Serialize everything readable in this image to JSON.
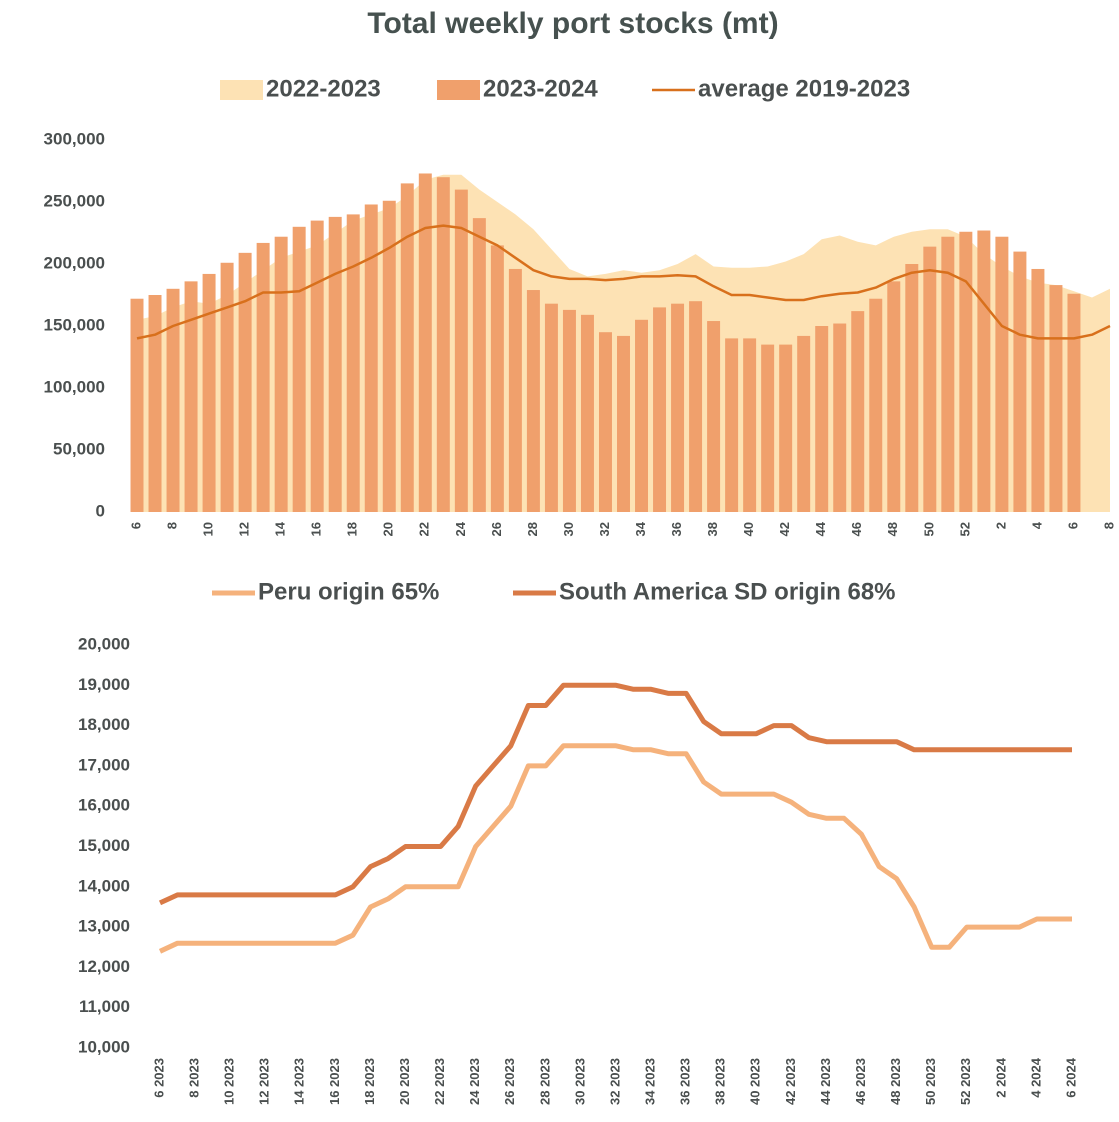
{
  "chart_data": [
    {
      "type": "bar",
      "title": "Total weekly port stocks (mt)",
      "categories": [
        "6",
        null,
        "8",
        null,
        "10",
        null,
        "12",
        null,
        "14",
        null,
        "16",
        null,
        "18",
        null,
        "20",
        null,
        "22",
        null,
        "24",
        null,
        "26",
        null,
        "28",
        null,
        "30",
        null,
        "32",
        null,
        "34",
        null,
        "36",
        null,
        "38",
        null,
        "40",
        null,
        "42",
        null,
        "44",
        null,
        "46",
        null,
        "48",
        null,
        "50",
        null,
        "52",
        null,
        "2",
        null,
        "4",
        null,
        "6",
        null,
        "8"
      ],
      "series": [
        {
          "name": "2022-2023",
          "type": "area",
          "color": "#fde2b4",
          "values": [
            155000,
            158000,
            165000,
            170000,
            168000,
            175000,
            185000,
            195000,
            205000,
            210000,
            215000,
            225000,
            235000,
            240000,
            245000,
            255000,
            268000,
            272000,
            272000,
            260000,
            250000,
            240000,
            228000,
            212000,
            196000,
            190000,
            192000,
            195000,
            193000,
            195000,
            200000,
            208000,
            198000,
            197000,
            197000,
            198000,
            202000,
            208000,
            220000,
            223000,
            218000,
            215000,
            222000,
            226000,
            228000,
            228000,
            222000,
            208000,
            198000,
            190000,
            185000,
            183000,
            178000,
            173000,
            180000
          ]
        },
        {
          "name": "2023-2024",
          "type": "bar",
          "color": "#f0a06c",
          "values": [
            172000,
            175000,
            180000,
            186000,
            192000,
            201000,
            209000,
            217000,
            222000,
            230000,
            235000,
            238000,
            240000,
            248000,
            251000,
            265000,
            273000,
            270000,
            260000,
            237000,
            215000,
            196000,
            179000,
            168000,
            163000,
            159000,
            145000,
            142000,
            155000,
            165000,
            168000,
            170000,
            154000,
            140000,
            140000,
            135000,
            135000,
            142000,
            150000,
            152000,
            162000,
            172000,
            186000,
            200000,
            214000,
            222000,
            226000,
            227000,
            222000,
            210000,
            196000,
            183000,
            176000,
            null,
            null
          ]
        },
        {
          "name": "average 2019-2023",
          "type": "line",
          "color": "#d8701c",
          "values": [
            140000,
            143000,
            150000,
            155000,
            160000,
            165000,
            170000,
            177000,
            177000,
            178000,
            185000,
            192000,
            198000,
            205000,
            213000,
            222000,
            229000,
            231000,
            229000,
            222000,
            215000,
            205000,
            195000,
            190000,
            188000,
            188000,
            187000,
            188000,
            190000,
            190000,
            191000,
            190000,
            182000,
            175000,
            175000,
            173000,
            171000,
            171000,
            174000,
            176000,
            177000,
            181000,
            188000,
            193000,
            195000,
            193000,
            186000,
            168000,
            150000,
            143000,
            140000,
            140000,
            140000,
            143000,
            150000
          ]
        }
      ],
      "ylim": [
        0,
        300000
      ],
      "yticks": [
        0,
        {
          "value": 50000,
          "label": "50,000"
        },
        {
          "value": 100000,
          "label": "100,000"
        },
        {
          "value": 150000,
          "label": "150,000"
        },
        {
          "value": 200000,
          "label": "200,000"
        },
        {
          "value": 250000,
          "label": "250,000"
        },
        {
          "value": 300000,
          "label": "300,000"
        }
      ]
    },
    {
      "type": "line",
      "categories": [
        "6 2023",
        null,
        "8 2023",
        null,
        "10 2023",
        null,
        "12 2023",
        null,
        "14 2023",
        null,
        "16 2023",
        null,
        "18 2023",
        null,
        "20 2023",
        null,
        "22 2023",
        null,
        "24 2023",
        null,
        "26 2023",
        null,
        "28 2023",
        null,
        "30 2023",
        null,
        "32 2023",
        null,
        "34 2023",
        null,
        "36 2023",
        null,
        "38 2023",
        null,
        "40 2023",
        null,
        "42 2023",
        null,
        "44 2023",
        null,
        "46 2023",
        null,
        "48 2023",
        null,
        "50 2023",
        null,
        "52 2023",
        null,
        "2 2024",
        null,
        "4 2024",
        null,
        "6 2024"
      ],
      "series": [
        {
          "name": "Peru origin 65%",
          "color": "#f5b27c",
          "values": [
            12400,
            12600,
            12600,
            12600,
            12600,
            12600,
            12600,
            12600,
            12600,
            12600,
            12600,
            12800,
            13500,
            13700,
            14000,
            14000,
            14000,
            14000,
            15000,
            15500,
            16000,
            17000,
            17000,
            17500,
            17500,
            17500,
            17500,
            17400,
            17400,
            17300,
            17300,
            16600,
            16300,
            16300,
            16300,
            16300,
            16100,
            15800,
            15700,
            15700,
            15300,
            14500,
            14200,
            13500,
            12500,
            12500,
            13000,
            13000,
            13000,
            13000,
            13200,
            13200,
            13200
          ]
        },
        {
          "name": "South America SD origin 68%",
          "color": "#d97a46",
          "values": [
            13600,
            13800,
            13800,
            13800,
            13800,
            13800,
            13800,
            13800,
            13800,
            13800,
            13800,
            14000,
            14500,
            14700,
            15000,
            15000,
            15000,
            15500,
            16500,
            17000,
            17500,
            18500,
            18500,
            19000,
            19000,
            19000,
            19000,
            18900,
            18900,
            18800,
            18800,
            18100,
            17800,
            17800,
            17800,
            18000,
            18000,
            17700,
            17600,
            17600,
            17600,
            17600,
            17600,
            17400,
            17400,
            17400,
            17400,
            17400,
            17400,
            17400,
            17400,
            17400,
            17400
          ]
        }
      ],
      "ylim": [
        10000,
        20000
      ],
      "yticks": [
        {
          "value": 10000,
          "label": "10,000"
        },
        {
          "value": 11000,
          "label": "11,000"
        },
        {
          "value": 12000,
          "label": "12,000"
        },
        {
          "value": 13000,
          "label": "13,000"
        },
        {
          "value": 14000,
          "label": "14,000"
        },
        {
          "value": 15000,
          "label": "15,000"
        },
        {
          "value": 16000,
          "label": "16,000"
        },
        {
          "value": 17000,
          "label": "17,000"
        },
        {
          "value": 18000,
          "label": "18,000"
        },
        {
          "value": 19000,
          "label": "19,000"
        },
        {
          "value": 20000,
          "label": "20,000"
        }
      ]
    }
  ]
}
